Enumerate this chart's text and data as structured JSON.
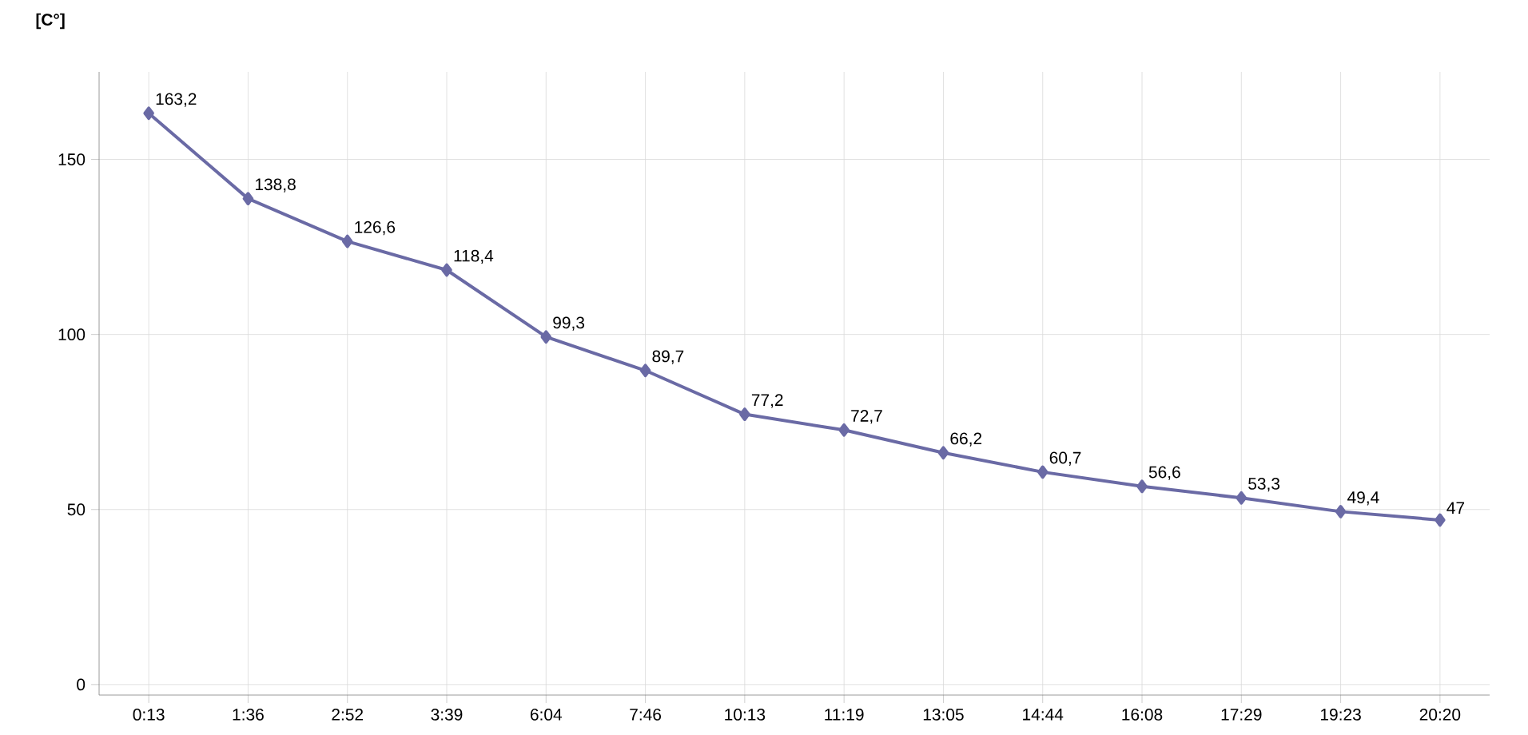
{
  "chart_data": {
    "type": "line",
    "ylabel": "[C°]",
    "categories": [
      "0:13",
      "1:36",
      "2:52",
      "3:39",
      "6:04",
      "7:46",
      "10:13",
      "11:19",
      "13:05",
      "14:44",
      "16:08",
      "17:29",
      "19:23",
      "20:20"
    ],
    "series": [
      {
        "color": "#6a6aa5",
        "values": [
          163.2,
          138.8,
          126.6,
          118.4,
          99.3,
          89.7,
          77.2,
          72.7,
          66.2,
          60.7,
          56.6,
          53.3,
          49.4,
          47
        ],
        "value_labels": [
          "163,2",
          "138,8",
          "126,6",
          "118,4",
          "99,3",
          "89,7",
          "77,2",
          "72,7",
          "66,2",
          "60,7",
          "56,6",
          "53,3",
          "49,4",
          "47"
        ]
      }
    ],
    "ylim": [
      -3,
      175
    ],
    "yticks": [
      0,
      50,
      100,
      150
    ],
    "grid": true,
    "marker": "diamond",
    "line_style": "solid"
  }
}
